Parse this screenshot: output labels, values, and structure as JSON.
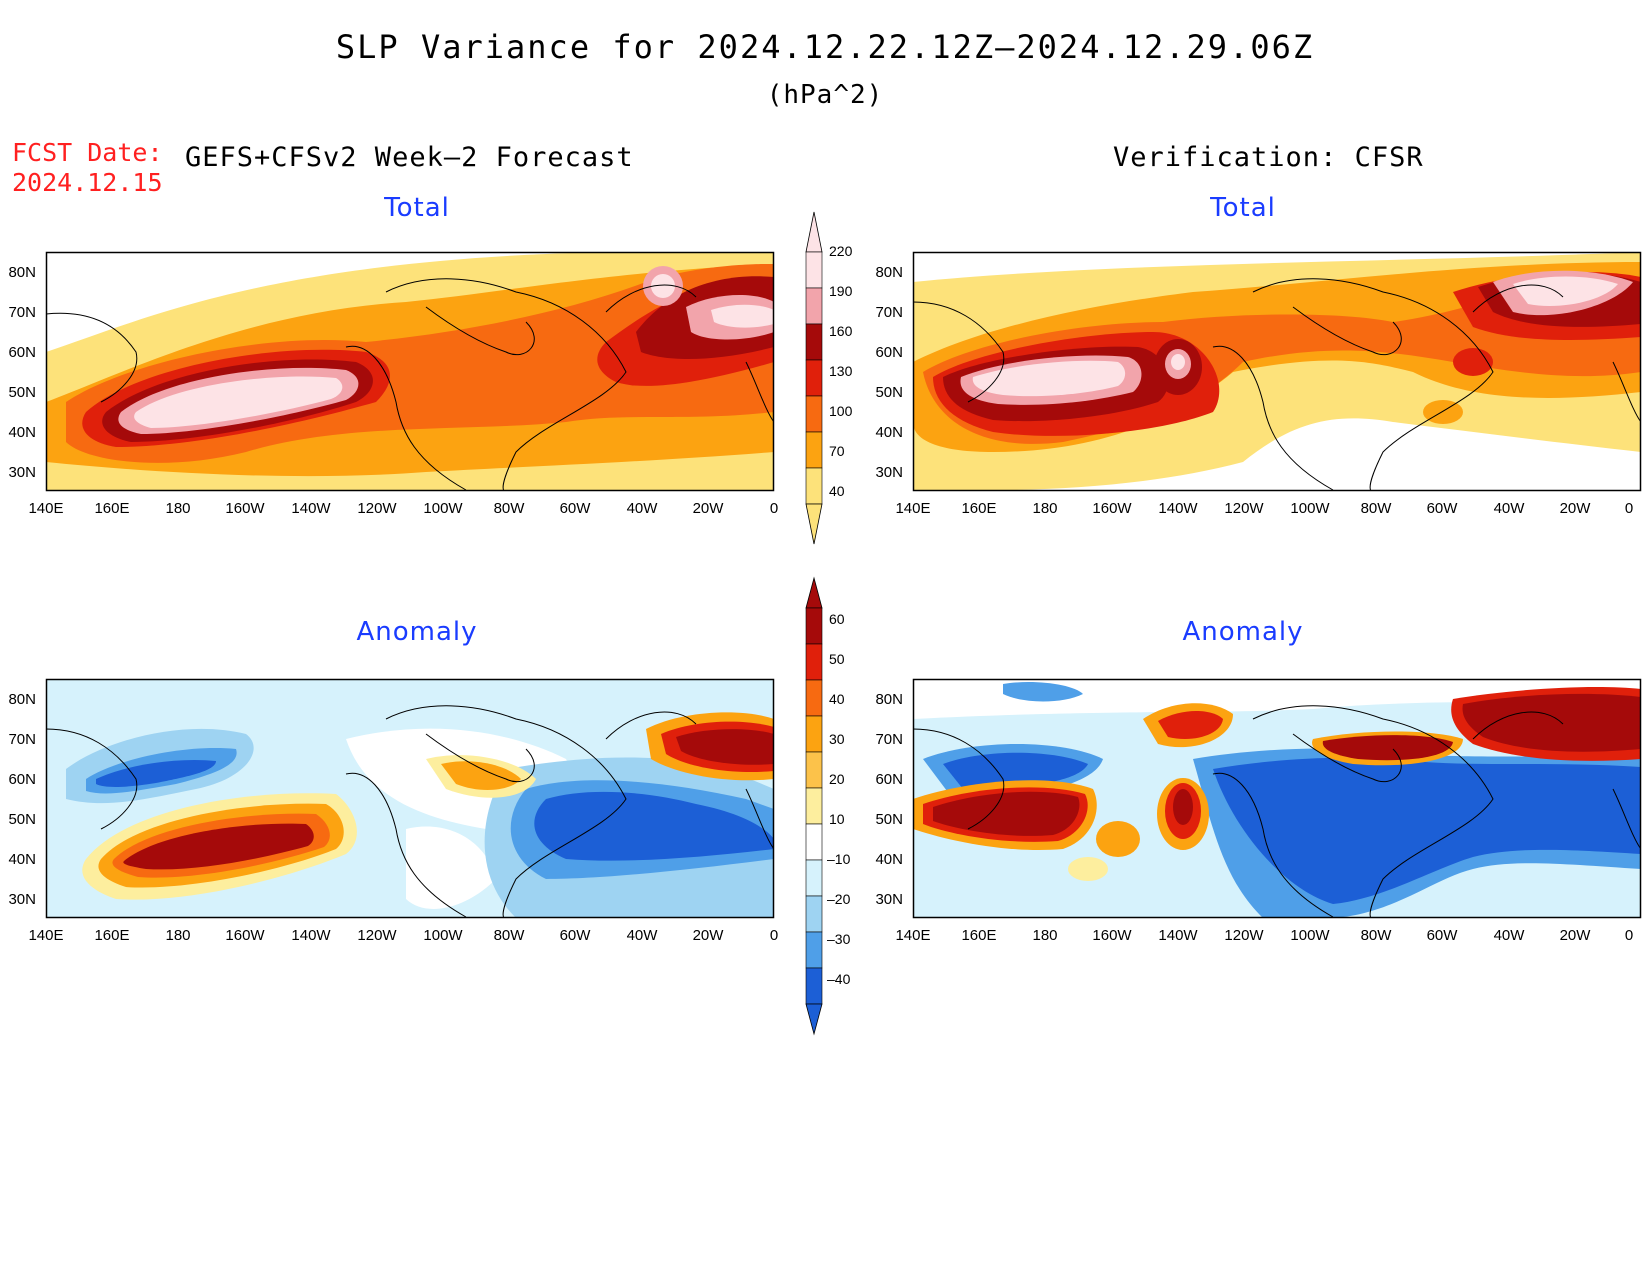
{
  "title": "SLP Variance for 2024.12.22.12Z–2024.12.29.06Z",
  "units": "(hPa^2)",
  "fcst_date_label": "FCST Date:",
  "fcst_date_value": "2024.12.15",
  "left_header": "GEFS+CFSv2 Week–2 Forecast",
  "right_header": "Verification: CFSR",
  "lat_labels": [
    "80N",
    "70N",
    "60N",
    "50N",
    "40N",
    "30N"
  ],
  "lon_labels": [
    "140E",
    "160E",
    "180",
    "160W",
    "140W",
    "120W",
    "100W",
    "80W",
    "60W",
    "40W",
    "20W",
    "0"
  ],
  "panels": {
    "fcst_total": {
      "subtitle": "Total"
    },
    "verif_total": {
      "subtitle": "Total"
    },
    "fcst_anomaly": {
      "subtitle": "Anomaly"
    },
    "verif_anomaly": {
      "subtitle": "Anomaly"
    }
  },
  "colorbar_total": {
    "labels": [
      "220",
      "190",
      "160",
      "130",
      "100",
      "70",
      "40"
    ],
    "colors": [
      "#fde3e6",
      "#f2a4ab",
      "#a50a0a",
      "#e0200b",
      "#f76a11",
      "#fca311",
      "#fde27a"
    ]
  },
  "colorbar_anomaly": {
    "labels": [
      "60",
      "50",
      "40",
      "30",
      "20",
      "10",
      "–10",
      "–20",
      "–30",
      "–40"
    ],
    "colors": [
      "#a50a0a",
      "#e0200b",
      "#f76a11",
      "#fca311",
      "#fcc24a",
      "#fdee9e",
      "#ffffff",
      "#d6f2fc",
      "#9ed3f2",
      "#4f9fe8",
      "#1c5fd6"
    ]
  }
}
